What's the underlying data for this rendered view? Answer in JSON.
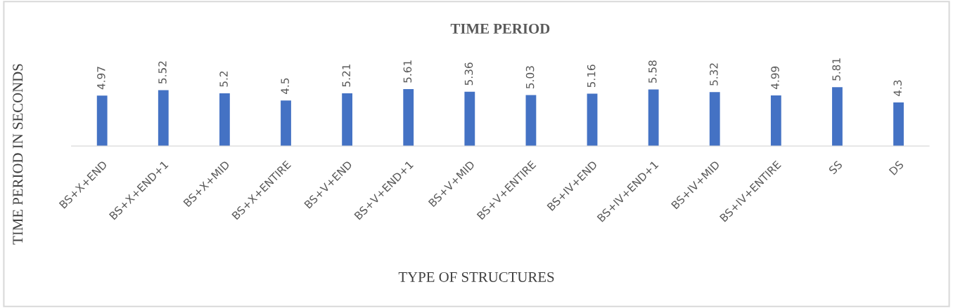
{
  "chart_data": {
    "type": "bar",
    "title": "TIME PERIOD",
    "xlabel": "TYPE OF STRUCTURES",
    "ylabel": "TIME PERIOD IN SECONDS",
    "categories": [
      "BS+X+END",
      "BS+X+END+1",
      "BS+X+MID",
      "BS+X+ENTIRE",
      "BS+V+END",
      "BS+V+END+1",
      "BS+V+MID",
      "BS+V+ENTIRE",
      "BS+IV+END",
      "BS+IV+END+1",
      "BS+IV+MID",
      "BS+IV+ENTIRE",
      "SS",
      "DS"
    ],
    "values": [
      4.97,
      5.52,
      5.2,
      4.5,
      5.21,
      5.61,
      5.36,
      5.03,
      5.16,
      5.58,
      5.32,
      4.99,
      5.81,
      4.3
    ],
    "color": "#4472c4",
    "data_labels": true,
    "tick_labels": "x"
  }
}
